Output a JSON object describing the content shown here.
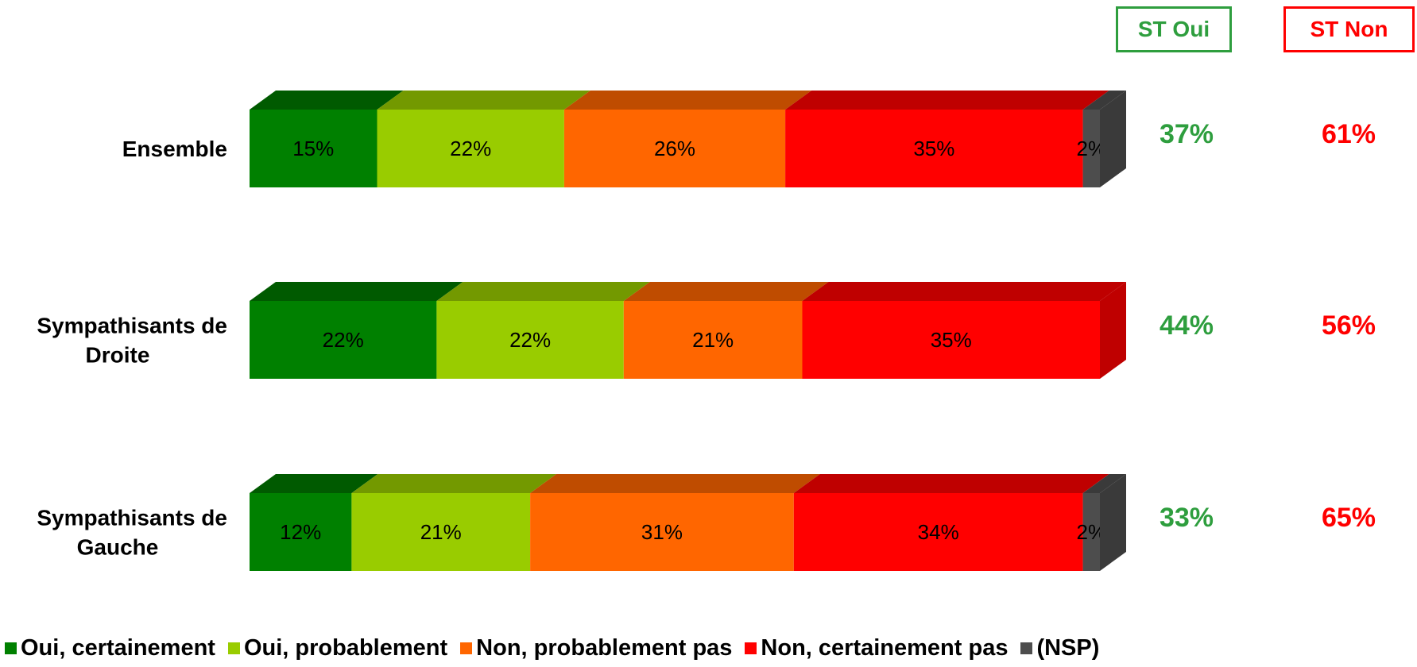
{
  "headers": {
    "oui": {
      "label": "ST Oui",
      "color": "#2E9E3E"
    },
    "non": {
      "label": "ST Non",
      "color": "#FF0000"
    }
  },
  "chart_data": {
    "type": "bar",
    "orientation": "horizontal",
    "stacked": true,
    "categories": [
      "Ensemble",
      "Sympathisants de Droite",
      "Sympathisants de Gauche"
    ],
    "category_lines": [
      [
        "Ensemble"
      ],
      [
        "Sympathisants de",
        "Droite"
      ],
      [
        "Sympathisants de",
        "Gauche"
      ]
    ],
    "series": [
      {
        "name": "Oui, certainement",
        "color": "#008000",
        "top_color": "#005A00",
        "values": [
          15,
          22,
          12
        ]
      },
      {
        "name": "Oui, probablement",
        "color": "#99CC00",
        "top_color": "#739900",
        "values": [
          22,
          22,
          21
        ]
      },
      {
        "name": "Non, probablement pas",
        "color": "#FF6600",
        "top_color": "#BF4C00",
        "values": [
          26,
          21,
          31
        ]
      },
      {
        "name": "Non, certainement pas",
        "color": "#FF0000",
        "top_color": "#BF0000",
        "values": [
          35,
          35,
          34
        ]
      },
      {
        "name": "(NSP)",
        "color": "#4D4D4D",
        "top_color": "#3A3A3A",
        "values": [
          2,
          0,
          2
        ]
      }
    ],
    "labels": [
      [
        "15%",
        "22%",
        "26%",
        "35%",
        "2%"
      ],
      [
        "22%",
        "22%",
        "21%",
        "35%",
        ""
      ],
      [
        "12%",
        "21%",
        "31%",
        "34%",
        "2%"
      ]
    ],
    "st_oui": [
      "37%",
      "44%",
      "33%"
    ],
    "st_non": [
      "61%",
      "56%",
      "65%"
    ],
    "xlim": [
      0,
      100
    ],
    "legend_position": "bottom",
    "grid": false
  }
}
